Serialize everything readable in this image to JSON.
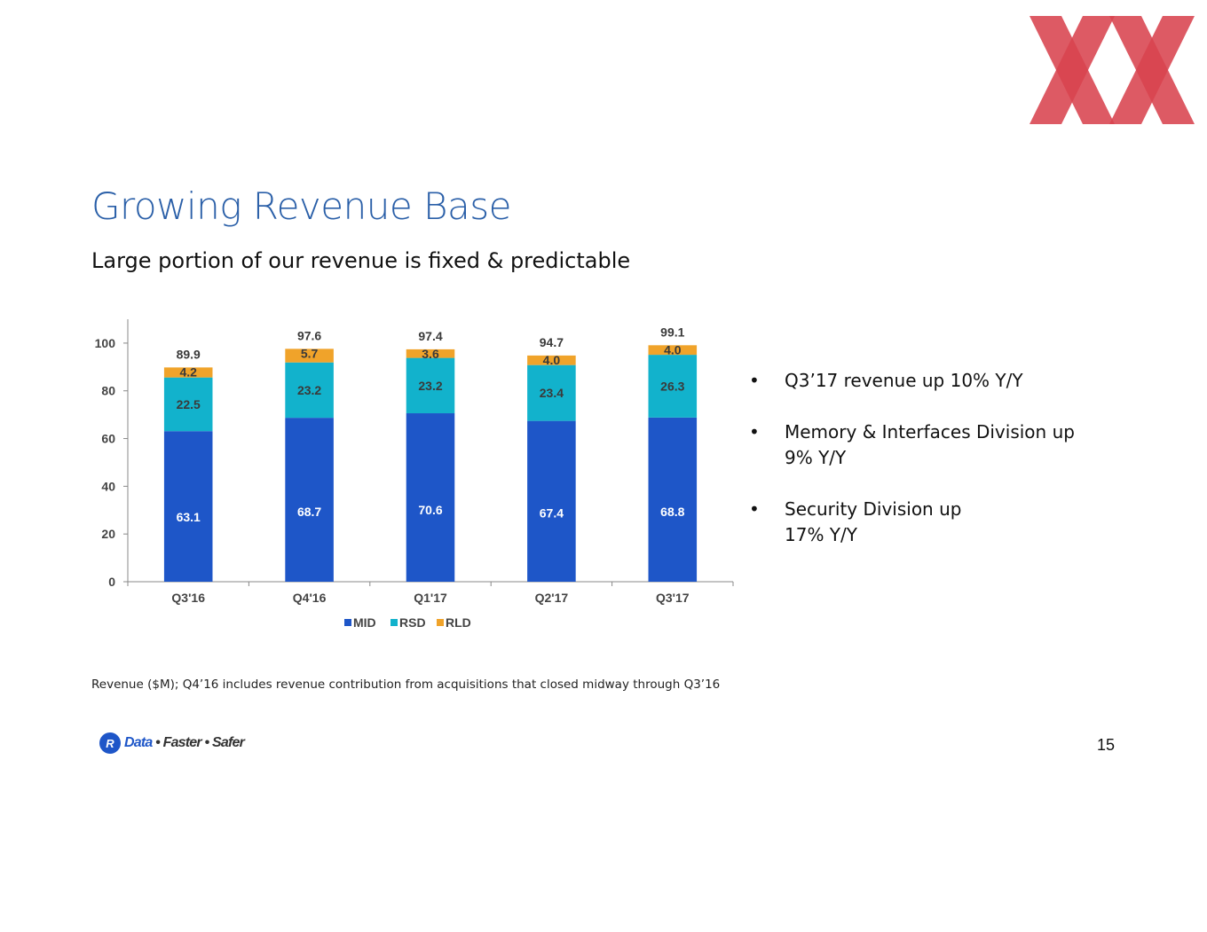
{
  "slide": {
    "title": "Growing Revenue Base",
    "subtitle": "Large portion of our revenue is fixed & predictable",
    "bullets": [
      "Q3’17 revenue up 10% Y/Y",
      "Memory & Interfaces Division up 9% Y/Y",
      "Security Division up 17% Y/Y"
    ],
    "bullet_symbol": "•",
    "footnote": "Revenue ($M); Q4’16 includes revenue contribution from acquisitions that closed midway through Q3’16",
    "tagline": {
      "badge": "R",
      "words": [
        "Data",
        "Faster",
        "Safer"
      ],
      "separator": "•"
    },
    "page_number": "15",
    "colors": {
      "title": "#2a5fa8",
      "logo": "#d8434f"
    }
  },
  "chart_data": {
    "type": "bar",
    "stacked": true,
    "categories": [
      "Q3'16",
      "Q4'16",
      "Q1'17",
      "Q2'17",
      "Q3'17"
    ],
    "series": [
      {
        "name": "MID",
        "color": "#1e56c8",
        "values": [
          63.1,
          68.7,
          70.6,
          67.4,
          68.8
        ]
      },
      {
        "name": "RSD",
        "color": "#12b2cc",
        "values": [
          22.5,
          23.2,
          23.2,
          23.4,
          26.3
        ]
      },
      {
        "name": "RLD",
        "color": "#f0a32a",
        "values": [
          4.2,
          5.7,
          3.6,
          4.0,
          4.0
        ]
      }
    ],
    "totals": [
      89.9,
      97.6,
      97.4,
      94.7,
      99.1
    ],
    "ylim": [
      0,
      110
    ],
    "yticks": [
      0,
      20,
      40,
      60,
      80,
      100
    ],
    "grid": false,
    "legend": "bottom-center",
    "xlabel": "",
    "ylabel": ""
  }
}
